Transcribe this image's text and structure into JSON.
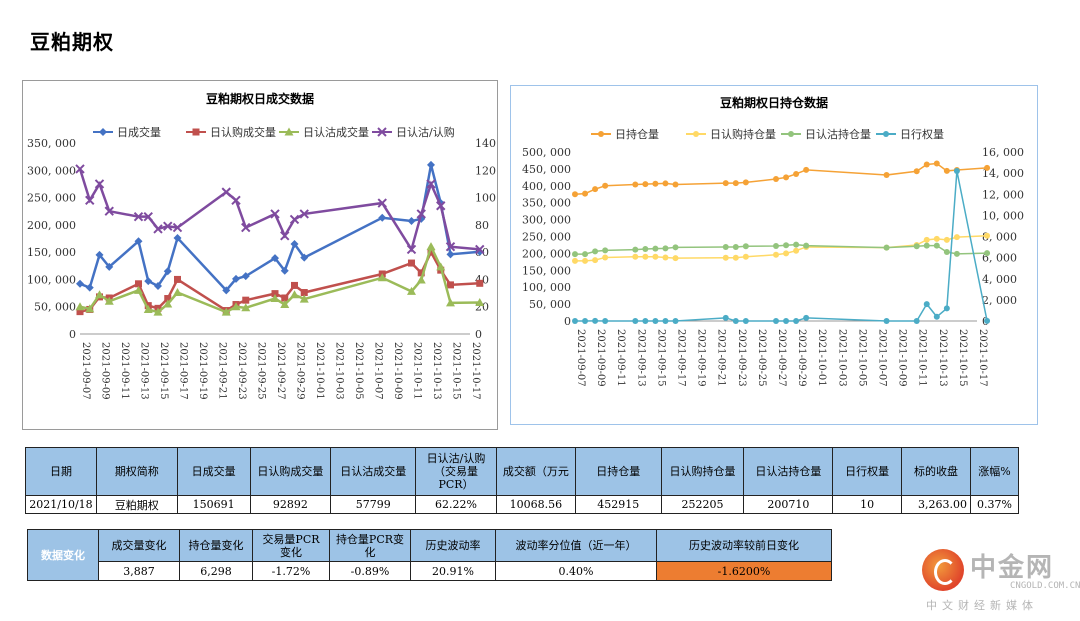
{
  "page": {
    "title": "豆粕期权"
  },
  "dates": [
    "2021-09-07",
    "2021-09-08",
    "2021-09-09",
    "2021-09-10",
    "2021-09-13",
    "2021-09-14",
    "2021-09-15",
    "2021-09-16",
    "2021-09-17",
    "2021-09-22",
    "2021-09-23",
    "2021-09-24",
    "2021-09-27",
    "2021-09-28",
    "2021-09-29",
    "2021-09-30",
    "2021-10-08",
    "2021-10-11",
    "2021-10-12",
    "2021-10-13",
    "2021-10-14",
    "2021-10-15",
    "2021-10-18"
  ],
  "chart_data": [
    {
      "type": "line",
      "title": "豆粕期权日成交数据",
      "x_ticks": [
        "2021-09-07",
        "2021-09-09",
        "2021-09-11",
        "2021-09-13",
        "2021-09-15",
        "2021-09-17",
        "2021-09-19",
        "2021-09-21",
        "2021-09-23",
        "2021-09-25",
        "2021-09-27",
        "2021-09-29",
        "2021-10-01",
        "2021-10-03",
        "2021-10-05",
        "2021-10-07",
        "2021-10-09",
        "2021-10-11",
        "2021-10-13",
        "2021-10-15",
        "2021-10-17"
      ],
      "y_left": {
        "min": 0,
        "max": 350000,
        "step": 50000,
        "ticks": [
          "0",
          "50, 000",
          "100, 000",
          "150, 000",
          "200, 000",
          "250, 000",
          "300, 000",
          "350, 000"
        ]
      },
      "y_right": {
        "min": 0,
        "max": 140,
        "step": 20,
        "ticks": [
          "0",
          "20",
          "40",
          "60",
          "80",
          "100",
          "120",
          "140"
        ]
      },
      "legend_position": "top",
      "series": [
        {
          "name": "日成交量",
          "axis": "left",
          "color": "#4472c4",
          "marker": "diamond",
          "values": [
            92000,
            85000,
            145000,
            123000,
            170000,
            97000,
            88000,
            115000,
            176000,
            80000,
            101000,
            106000,
            139000,
            116000,
            165000,
            140000,
            213000,
            207000,
            211000,
            310000,
            240000,
            146000,
            150691
          ]
        },
        {
          "name": "日认购成交量",
          "axis": "left",
          "color": "#c0504d",
          "marker": "square",
          "values": [
            41000,
            45000,
            68000,
            66000,
            92000,
            52000,
            47000,
            65000,
            100000,
            43000,
            54000,
            62000,
            74000,
            66000,
            89000,
            76000,
            110000,
            130000,
            112000,
            150000,
            117000,
            90000,
            92892
          ]
        },
        {
          "name": "日认沽成交量",
          "axis": "left",
          "color": "#9bbb59",
          "marker": "triangle",
          "values": [
            50000,
            46000,
            72000,
            60000,
            80000,
            45000,
            40000,
            55000,
            76000,
            40000,
            50000,
            48000,
            65000,
            54000,
            72000,
            64000,
            103000,
            78000,
            99000,
            160000,
            123000,
            57000,
            57799
          ]
        },
        {
          "name": "日认沽/认购",
          "axis": "right",
          "color": "#7f4b9f",
          "marker": "x",
          "values": [
            121,
            98,
            110,
            90,
            86,
            86,
            77,
            79,
            78,
            104,
            98,
            78,
            88,
            72,
            84,
            88,
            96,
            62,
            88,
            110,
            94,
            64,
            62
          ]
        }
      ]
    },
    {
      "type": "line",
      "title": "豆粕期权日持仓数据",
      "x_ticks": [
        "2021-09-07",
        "2021-09-09",
        "2021-09-11",
        "2021-09-13",
        "2021-09-15",
        "2021-09-17",
        "2021-09-19",
        "2021-09-21",
        "2021-09-23",
        "2021-09-25",
        "2021-09-27",
        "2021-09-29",
        "2021-10-01",
        "2021-10-03",
        "2021-10-05",
        "2021-10-07",
        "2021-10-09",
        "2021-10-11",
        "2021-10-13",
        "2021-10-15",
        "2021-10-17"
      ],
      "y_left": {
        "min": 0,
        "max": 500000,
        "step": 50000,
        "ticks": [
          "0",
          "50, 000",
          "100, 000",
          "150, 000",
          "200, 000",
          "250, 000",
          "300, 000",
          "350, 000",
          "400, 000",
          "450, 000",
          "500, 000"
        ]
      },
      "y_right": {
        "min": 0,
        "max": 16000,
        "step": 2000,
        "ticks": [
          "0",
          "2, 000",
          "4, 000",
          "6, 000",
          "8, 000",
          "10, 000",
          "12, 000",
          "14, 000",
          "16, 000"
        ]
      },
      "legend_position": "top",
      "series": [
        {
          "name": "日持仓量",
          "axis": "left",
          "color": "#f5a236",
          "marker": "circle",
          "values": [
            375000,
            377000,
            390000,
            400000,
            404000,
            405000,
            406000,
            407000,
            404000,
            408000,
            408000,
            410000,
            420000,
            425000,
            435000,
            447000,
            432000,
            443000,
            463000,
            466000,
            444000,
            446617,
            452915
          ]
        },
        {
          "name": "日认购持仓量",
          "axis": "left",
          "color": "#ffd966",
          "marker": "circle",
          "values": [
            178000,
            178000,
            180000,
            188000,
            190000,
            190000,
            190000,
            188000,
            186000,
            187000,
            187000,
            190000,
            196000,
            200000,
            208000,
            219000,
            217000,
            225000,
            240000,
            243000,
            240000,
            248000,
            252205
          ]
        },
        {
          "name": "日认沽持仓量",
          "axis": "left",
          "color": "#93c47d",
          "marker": "circle",
          "values": [
            198000,
            198000,
            206000,
            209000,
            211000,
            213000,
            214000,
            215000,
            218000,
            219000,
            219000,
            221000,
            222000,
            224000,
            226000,
            223000,
            217000,
            221000,
            223000,
            223000,
            204000,
            198600,
            200710
          ]
        },
        {
          "name": "日行权量",
          "axis": "right",
          "color": "#4bacc6",
          "marker": "circle",
          "values": [
            0,
            0,
            10,
            0,
            0,
            0,
            0,
            0,
            0,
            300,
            0,
            0,
            0,
            0,
            0,
            300,
            0,
            0,
            1600,
            400,
            1200,
            14200,
            10
          ]
        }
      ]
    }
  ],
  "table1": {
    "headers": [
      "日期",
      "期权简称",
      "日成交量",
      "日认购成交量",
      "日认沽成交量",
      "日认沽/认购\n（交易量\nPCR）",
      "成交额（万元",
      "日持仓量",
      "日认购持仓量",
      "日认沽持仓量",
      "日行权量",
      "标的收盘",
      "涨幅%"
    ],
    "row": [
      "2021/10/18",
      "豆粕期权",
      "150691",
      "92892",
      "57799",
      "62.22%",
      "10068.56",
      "452915",
      "252205",
      "200710",
      "10",
      "3,263.00",
      "0.37%"
    ]
  },
  "table2": {
    "side_label": "数据变化",
    "headers": [
      "成交量变化",
      "持仓量变化",
      "交易量PCR\n变化",
      "持仓量PCR变\n化",
      "历史波动率",
      "波动率分位值（近一年）",
      "历史波动率较前日变化"
    ],
    "row": [
      "3,887",
      "6,298",
      "-1.72%",
      "-0.89%",
      "20.91%",
      "0.40%",
      "-1.6200%"
    ]
  },
  "logo": {
    "main": "中金网",
    "domain": "CNGOLD.COM.CN",
    "tag": "中文财经新媒体"
  }
}
